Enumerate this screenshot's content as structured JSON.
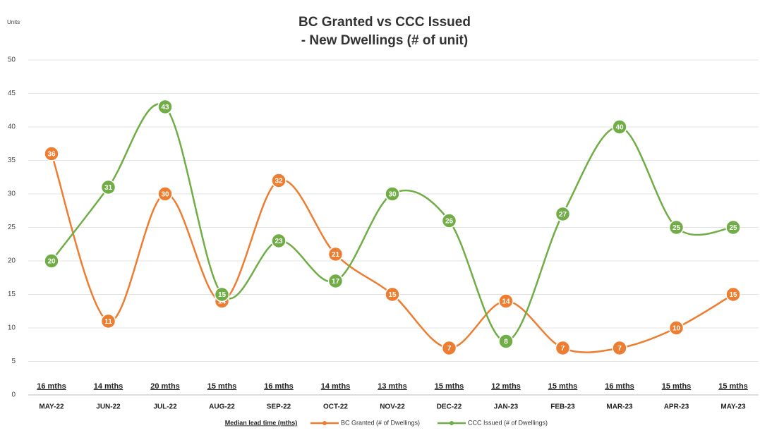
{
  "chart_data": {
    "type": "line",
    "title": "BC Granted vs CCC Issued",
    "subtitle": "- New Dwellings (# of unit)",
    "y_label": "Units",
    "categories": [
      "MAY-22",
      "JUN-22",
      "JUL-22",
      "AUG-22",
      "SEP-22",
      "OCT-22",
      "NOV-22",
      "DEC-22",
      "JAN-23",
      "FEB-23",
      "MAR-23",
      "APR-23",
      "MAY-23"
    ],
    "lead_times_label": "Median lead time (mths)",
    "lead_times": [
      "16 mths",
      "14 mths",
      "20 mths",
      "15 mths",
      "16 mths",
      "14 mths",
      "13 mths",
      "15 mths",
      "12 mths",
      "15 mths",
      "16 mths",
      "15 mths",
      "15 mths"
    ],
    "series": [
      {
        "name": "BC Granted (# of Dwellings)",
        "color": "#ed7d31",
        "values": [
          36,
          11,
          30,
          14,
          32,
          21,
          15,
          7,
          14,
          7,
          7,
          10,
          15
        ]
      },
      {
        "name": "CCC Issued (# of Dwellings)",
        "color": "#70ad47",
        "values": [
          20,
          31,
          43,
          15,
          23,
          17,
          30,
          26,
          8,
          27,
          40,
          25,
          25
        ]
      }
    ],
    "ylim": [
      0,
      50
    ],
    "yticks": [
      0,
      5,
      10,
      15,
      20,
      25,
      30,
      35,
      40,
      45,
      50
    ],
    "grid": true,
    "smooth": true
  }
}
